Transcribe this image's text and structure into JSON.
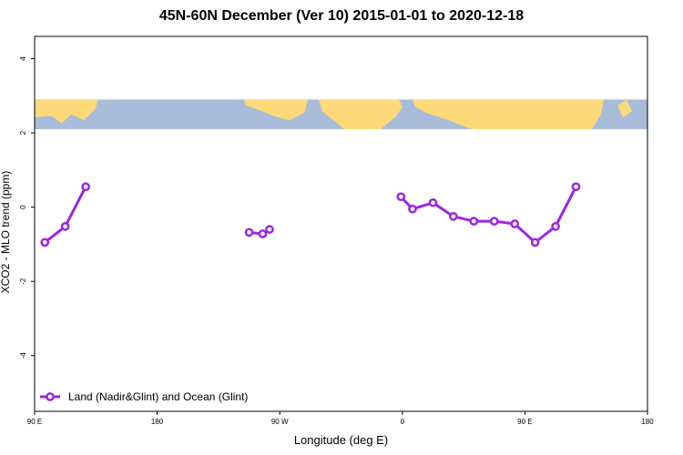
{
  "colors": {
    "series": "#9b26e0",
    "ocean": "#a8bcd9",
    "land": "#fdd97a",
    "axis": "#000000"
  },
  "chart_data": {
    "type": "line",
    "title": "45N-60N December (Ver 10)   2015-01-01 to 2020-12-18",
    "xlabel": "Longitude (deg E)",
    "ylabel": "XCO2 - MLO trend (ppm)",
    "xlim": [
      90,
      540
    ],
    "ylim": [
      -5.5,
      4.6
    ],
    "x_ticks": [
      {
        "value": 90,
        "label": "90 E"
      },
      {
        "value": 180,
        "label": "180"
      },
      {
        "value": 270,
        "label": "90 W"
      },
      {
        "value": 360,
        "label": "0"
      },
      {
        "value": 450,
        "label": "90 E"
      },
      {
        "value": 540,
        "label": "180"
      }
    ],
    "y_ticks": [
      {
        "value": 4,
        "label": "4"
      },
      {
        "value": 2,
        "label": "2"
      },
      {
        "value": 0,
        "label": "0"
      },
      {
        "value": -2,
        "label": "-2"
      },
      {
        "value": -4,
        "label": "-4"
      }
    ],
    "map_band": {
      "ymin": 2.1,
      "ymax": 2.9
    },
    "grid": false,
    "legend_position": "bottom-left",
    "series": [
      {
        "name": "Land (Nadir&Glint) and Ocean (Glint)",
        "segments": [
          [
            [
              97.5,
              -0.95
            ],
            [
              112.5,
              -0.52
            ],
            [
              127.5,
              0.55
            ]
          ],
          [
            [
              247.5,
              -0.68
            ],
            [
              257.5,
              -0.72
            ],
            [
              262.5,
              -0.6
            ]
          ],
          [
            [
              359.0,
              0.28
            ],
            [
              367.5,
              -0.05
            ],
            [
              382.5,
              0.12
            ],
            [
              397.5,
              -0.25
            ],
            [
              412.5,
              -0.38
            ],
            [
              427.5,
              -0.38
            ],
            [
              442.5,
              -0.45
            ],
            [
              457.5,
              -0.95
            ],
            [
              472.5,
              -0.52
            ],
            [
              487.5,
              0.55
            ]
          ]
        ]
      }
    ]
  }
}
